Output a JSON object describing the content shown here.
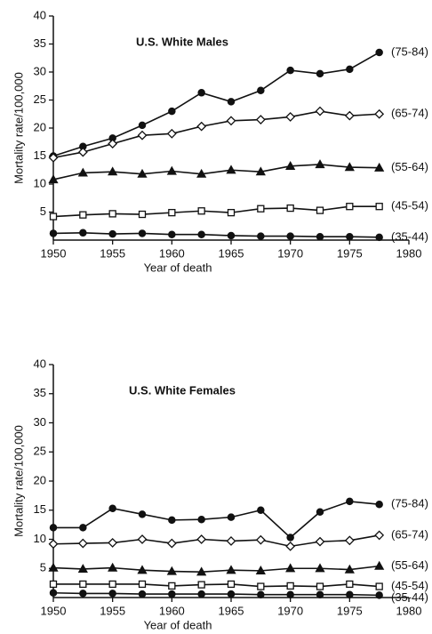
{
  "chart_data": [
    {
      "type": "line",
      "title": "U.S. White Males",
      "xlabel": "Year of death",
      "ylabel": "Mortality rate/100,000",
      "x": [
        1950,
        1952.5,
        1955,
        1957.5,
        1960,
        1962.5,
        1965,
        1967.5,
        1970,
        1972.5,
        1975,
        1977.5
      ],
      "xlim": [
        1950,
        1980
      ],
      "xticks": [
        1950,
        1955,
        1960,
        1965,
        1970,
        1975,
        1980
      ],
      "ylim": [
        0,
        40
      ],
      "yticks": [
        5,
        10,
        15,
        20,
        25,
        30,
        35,
        40
      ],
      "series": [
        {
          "name": "(75-84)",
          "color": "#111111",
          "marker": "filled-circle",
          "values": [
            15,
            16.7,
            18.2,
            20.5,
            23,
            26.3,
            24.7,
            26.7,
            30.3,
            29.7,
            30.5,
            33.5
          ]
        },
        {
          "name": "(65-74)",
          "color": "#111111",
          "marker": "open-diamond",
          "values": [
            14.7,
            15.7,
            17.2,
            18.7,
            19,
            20.3,
            21.3,
            21.5,
            22,
            23,
            22.2,
            22.5
          ]
        },
        {
          "name": "(55-64)",
          "color": "#111111",
          "marker": "filled-triangle",
          "values": [
            10.8,
            12,
            12.2,
            11.8,
            12.3,
            11.8,
            12.5,
            12.2,
            13.2,
            13.5,
            13,
            12.9
          ]
        },
        {
          "name": "(45-54)",
          "color": "#111111",
          "marker": "open-square",
          "values": [
            4.2,
            4.5,
            4.7,
            4.6,
            4.9,
            5.2,
            4.9,
            5.6,
            5.7,
            5.3,
            6,
            6
          ]
        },
        {
          "name": "(35-44)",
          "color": "#111111",
          "marker": "filled-circle",
          "values": [
            1.2,
            1.3,
            1.1,
            1.2,
            1.0,
            1.0,
            0.8,
            0.7,
            0.7,
            0.6,
            0.6,
            0.5
          ]
        }
      ]
    },
    {
      "type": "line",
      "title": "U.S. White Females",
      "xlabel": "Year of death",
      "ylabel": "Mortality rate/100,000",
      "x": [
        1950,
        1952.5,
        1955,
        1957.5,
        1960,
        1962.5,
        1965,
        1967.5,
        1970,
        1972.5,
        1975,
        1977.5
      ],
      "xlim": [
        1950,
        1980
      ],
      "xticks": [
        1950,
        1955,
        1960,
        1965,
        1970,
        1975,
        1980
      ],
      "ylim": [
        0,
        40
      ],
      "yticks": [
        5,
        10,
        15,
        20,
        25,
        30,
        35,
        40
      ],
      "series": [
        {
          "name": "(75-84)",
          "color": "#111111",
          "marker": "filled-circle",
          "values": [
            12,
            12,
            15.3,
            14.3,
            13.3,
            13.4,
            13.8,
            15,
            10.3,
            14.7,
            16.5,
            16
          ]
        },
        {
          "name": "(65-74)",
          "color": "#111111",
          "marker": "open-diamond",
          "values": [
            9.2,
            9.3,
            9.4,
            10,
            9.3,
            10,
            9.7,
            9.9,
            8.8,
            9.6,
            9.8,
            10.7
          ]
        },
        {
          "name": "(55-64)",
          "color": "#111111",
          "marker": "filled-triangle",
          "values": [
            5.1,
            4.9,
            5.1,
            4.7,
            4.5,
            4.4,
            4.7,
            4.6,
            5,
            5,
            4.8,
            5.4
          ]
        },
        {
          "name": "(45-54)",
          "color": "#111111",
          "marker": "open-square",
          "values": [
            2.3,
            2.3,
            2.3,
            2.3,
            2,
            2.2,
            2.3,
            1.9,
            2,
            1.9,
            2.3,
            1.9
          ]
        },
        {
          "name": "(35-44)",
          "color": "#111111",
          "marker": "filled-circle",
          "values": [
            0.8,
            0.7,
            0.7,
            0.6,
            0.6,
            0.6,
            0.6,
            0.5,
            0.5,
            0.5,
            0.5,
            0.4
          ]
        }
      ]
    }
  ]
}
